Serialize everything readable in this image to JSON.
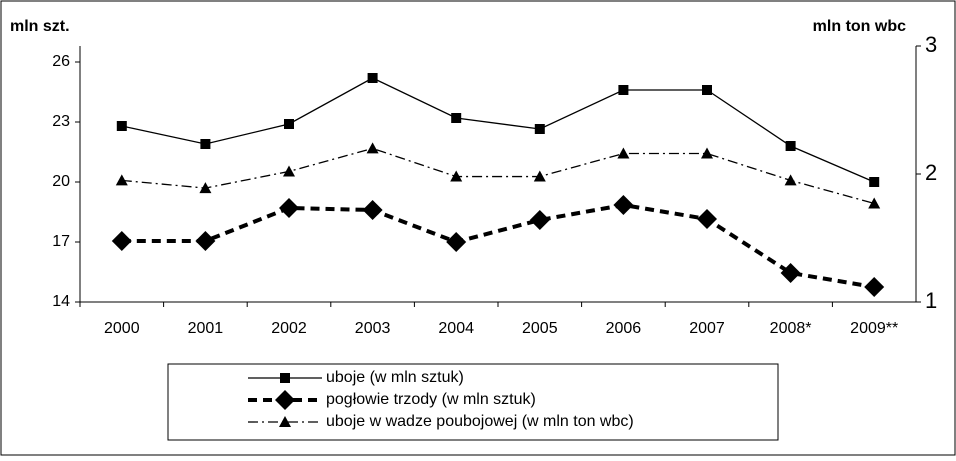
{
  "chart_data": {
    "type": "line",
    "y_label": "mln szt.",
    "y2_label": "mln ton wbc",
    "categories": [
      "2000",
      "2001",
      "2002",
      "2003",
      "2004",
      "2005",
      "2006",
      "2007",
      "2008*",
      "2009**"
    ],
    "series": [
      {
        "name": "uboje (w mln sztuk)",
        "color": "#000000",
        "style": "solid",
        "marker": "square",
        "values": [
          22.8,
          21.9,
          22.9,
          25.2,
          23.2,
          22.65,
          24.6,
          24.6,
          21.8,
          20.0
        ]
      },
      {
        "name": "pogłowie trzody (w mln sztuk)",
        "color": "#000000",
        "style": "dashed",
        "marker": "diamond",
        "values": [
          17.05,
          17.05,
          18.7,
          18.6,
          17.0,
          18.1,
          18.85,
          18.15,
          15.45,
          14.75
        ]
      },
      {
        "name": "uboje w wadze poubojowej (w mln ton wbc)",
        "color": "#000000",
        "style": "dashdot",
        "marker": "triangle",
        "axis": "y2",
        "values": [
          1.95,
          1.89,
          2.02,
          2.2,
          1.98,
          1.98,
          2.16,
          2.16,
          1.95,
          1.77
        ]
      }
    ],
    "ylim": [
      14,
      26.8
    ],
    "yticks": [
      14,
      17,
      20,
      23,
      26
    ],
    "y2lim": [
      1,
      3
    ],
    "y2ticks": [
      1,
      2,
      3
    ],
    "grid": false
  }
}
